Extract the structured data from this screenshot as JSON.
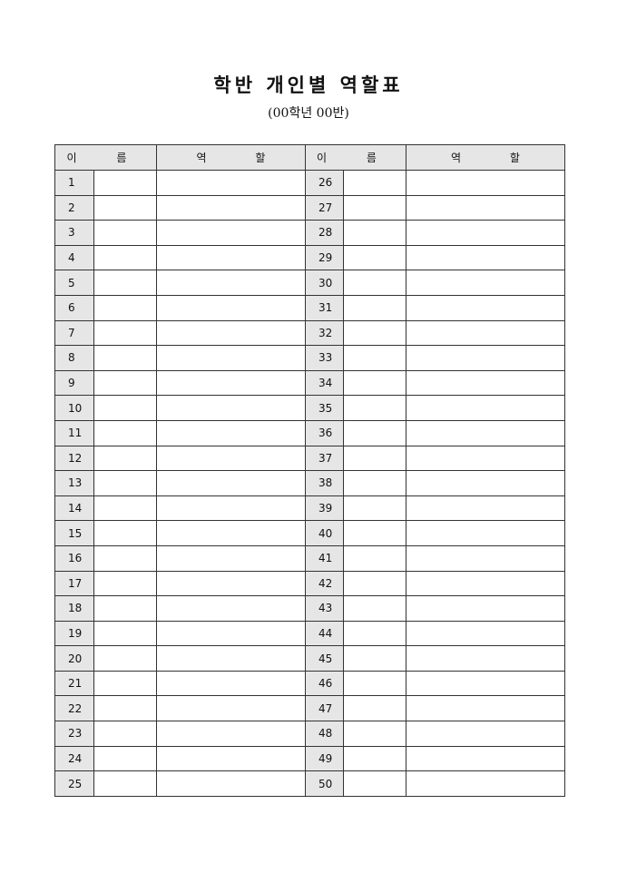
{
  "title": "학반 개인별 역할표",
  "subtitle": "(00학년 00반)",
  "headers": {
    "name": "이 름",
    "role": "역 할"
  },
  "left_numbers": [
    "1",
    "2",
    "3",
    "4",
    "5",
    "6",
    "7",
    "8",
    "9",
    "10",
    "11",
    "12",
    "13",
    "14",
    "15",
    "16",
    "17",
    "18",
    "19",
    "20",
    "21",
    "22",
    "23",
    "24",
    "25"
  ],
  "right_numbers": [
    "26",
    "27",
    "28",
    "29",
    "30",
    "31",
    "32",
    "33",
    "34",
    "35",
    "36",
    "37",
    "38",
    "39",
    "40",
    "41",
    "42",
    "43",
    "44",
    "45",
    "46",
    "47",
    "48",
    "49",
    "50"
  ],
  "colors": {
    "header_fill": "#e6e6e6",
    "border": "#333333"
  }
}
